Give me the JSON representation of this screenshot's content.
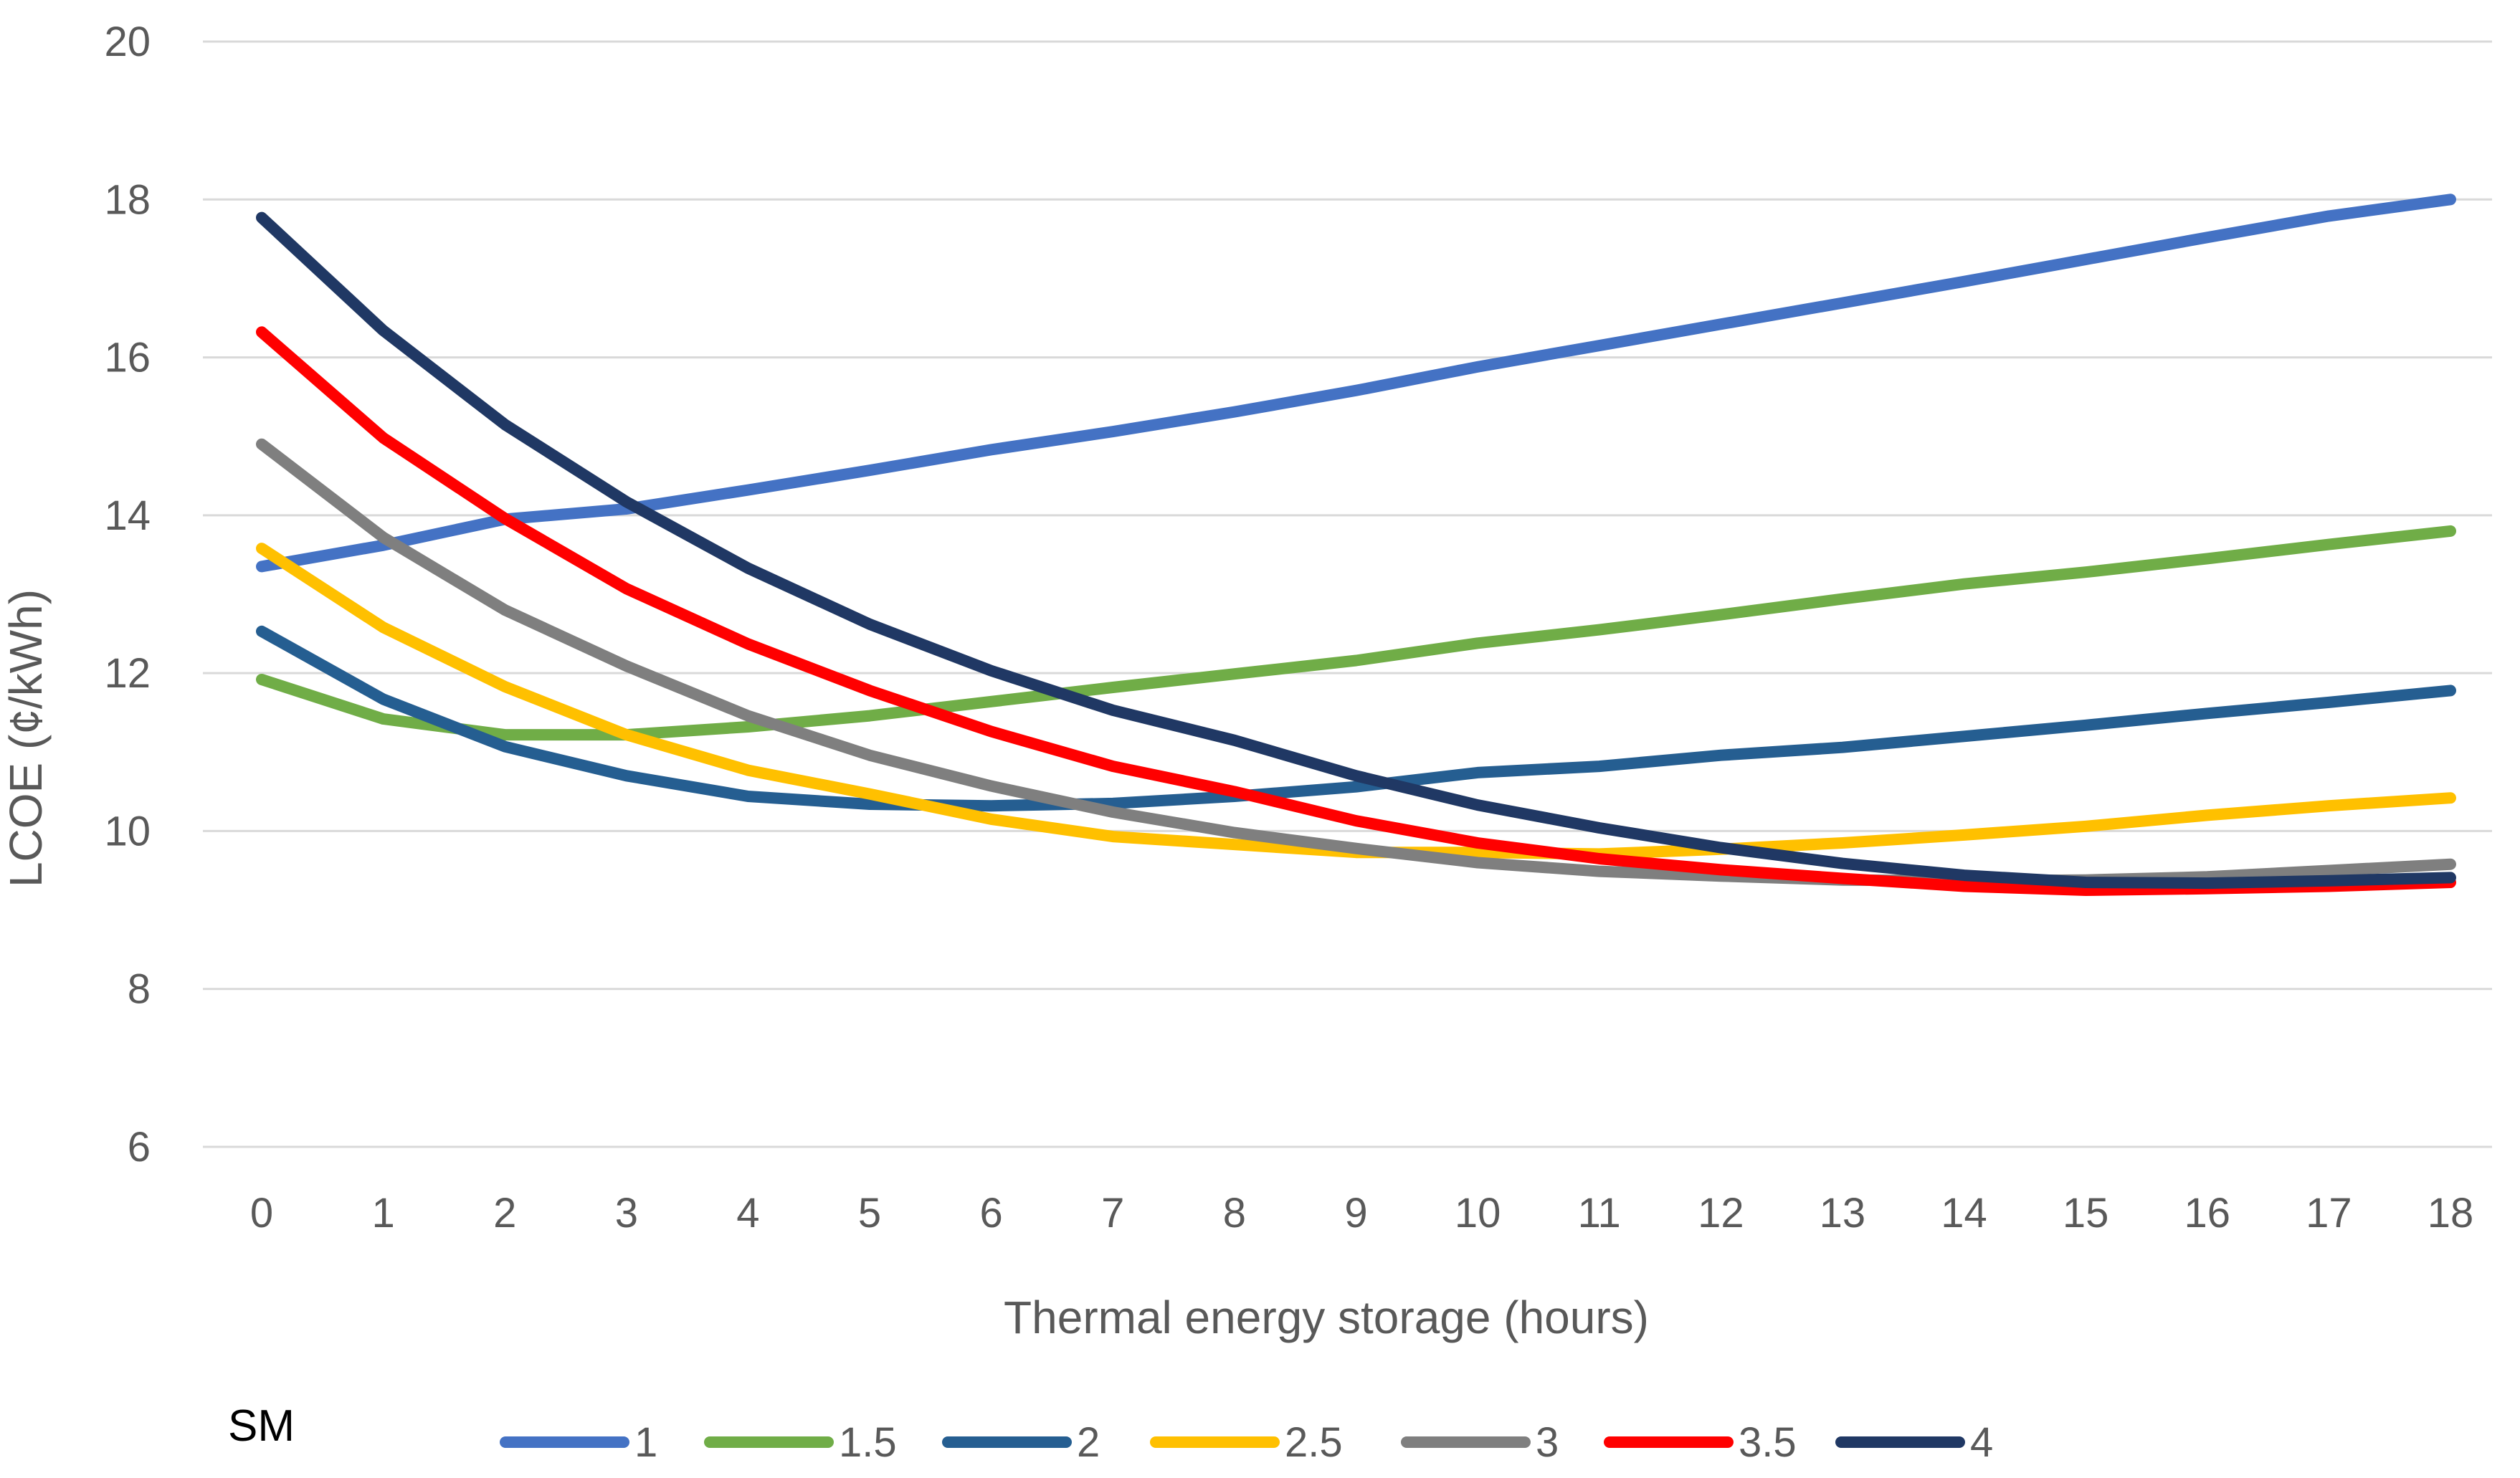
{
  "chart_data": {
    "type": "line",
    "title": "",
    "xlabel": "Thermal energy storage (hours)",
    "ylabel": "LCOE (¢/kWh)",
    "ylim": [
      6,
      20
    ],
    "yticks": [
      "6",
      "8",
      "10",
      "12",
      "14",
      "16",
      "18",
      "20"
    ],
    "grid": true,
    "legend_title": "SM",
    "legend_position": "bottom",
    "x": [
      "0",
      "1",
      "2",
      "3",
      "4",
      "5",
      "6",
      "7",
      "8",
      "9",
      "10",
      "11",
      "12",
      "13",
      "14",
      "15",
      "16",
      "17",
      "18"
    ],
    "series": [
      {
        "name": "1",
        "color": "#4472C4",
        "values": [
          13.35,
          13.62,
          13.95,
          14.08,
          14.32,
          14.57,
          14.83,
          15.06,
          15.31,
          15.58,
          15.88,
          16.15,
          16.42,
          16.69,
          16.96,
          17.24,
          17.52,
          17.79,
          18.0
        ]
      },
      {
        "name": "1.5",
        "color": "#70AD47",
        "values": [
          11.92,
          11.42,
          11.22,
          11.22,
          11.32,
          11.46,
          11.64,
          11.82,
          11.99,
          12.16,
          12.38,
          12.55,
          12.74,
          12.94,
          13.13,
          13.28,
          13.45,
          13.63,
          13.8
        ]
      },
      {
        "name": "2",
        "color": "#255E91",
        "values": [
          12.53,
          11.67,
          11.07,
          10.7,
          10.44,
          10.34,
          10.32,
          10.35,
          10.44,
          10.56,
          10.74,
          10.82,
          10.96,
          11.06,
          11.2,
          11.34,
          11.49,
          11.63,
          11.78
        ]
      },
      {
        "name": "2.5",
        "color": "#FFC000",
        "values": [
          13.58,
          12.58,
          11.83,
          11.22,
          10.77,
          10.47,
          10.15,
          9.93,
          9.83,
          9.73,
          9.73,
          9.71,
          9.77,
          9.85,
          9.95,
          10.06,
          10.2,
          10.32,
          10.42
        ]
      },
      {
        "name": "3",
        "color": "#7F7F7F",
        "values": [
          14.9,
          13.72,
          12.8,
          12.09,
          11.46,
          10.96,
          10.57,
          10.24,
          9.98,
          9.78,
          9.6,
          9.49,
          9.43,
          9.38,
          9.37,
          9.38,
          9.42,
          9.5,
          9.58
        ]
      },
      {
        "name": "3.5",
        "color": "#FF0000",
        "values": [
          16.32,
          14.98,
          13.96,
          13.07,
          12.37,
          11.78,
          11.26,
          10.82,
          10.5,
          10.13,
          9.85,
          9.65,
          9.51,
          9.4,
          9.3,
          9.25,
          9.27,
          9.3,
          9.35
        ]
      },
      {
        "name": "4",
        "color": "#203864",
        "values": [
          17.77,
          16.34,
          15.15,
          14.17,
          13.33,
          12.62,
          12.03,
          11.53,
          11.15,
          10.7,
          10.33,
          10.04,
          9.79,
          9.59,
          9.44,
          9.35,
          9.34,
          9.37,
          9.41
        ]
      }
    ]
  }
}
